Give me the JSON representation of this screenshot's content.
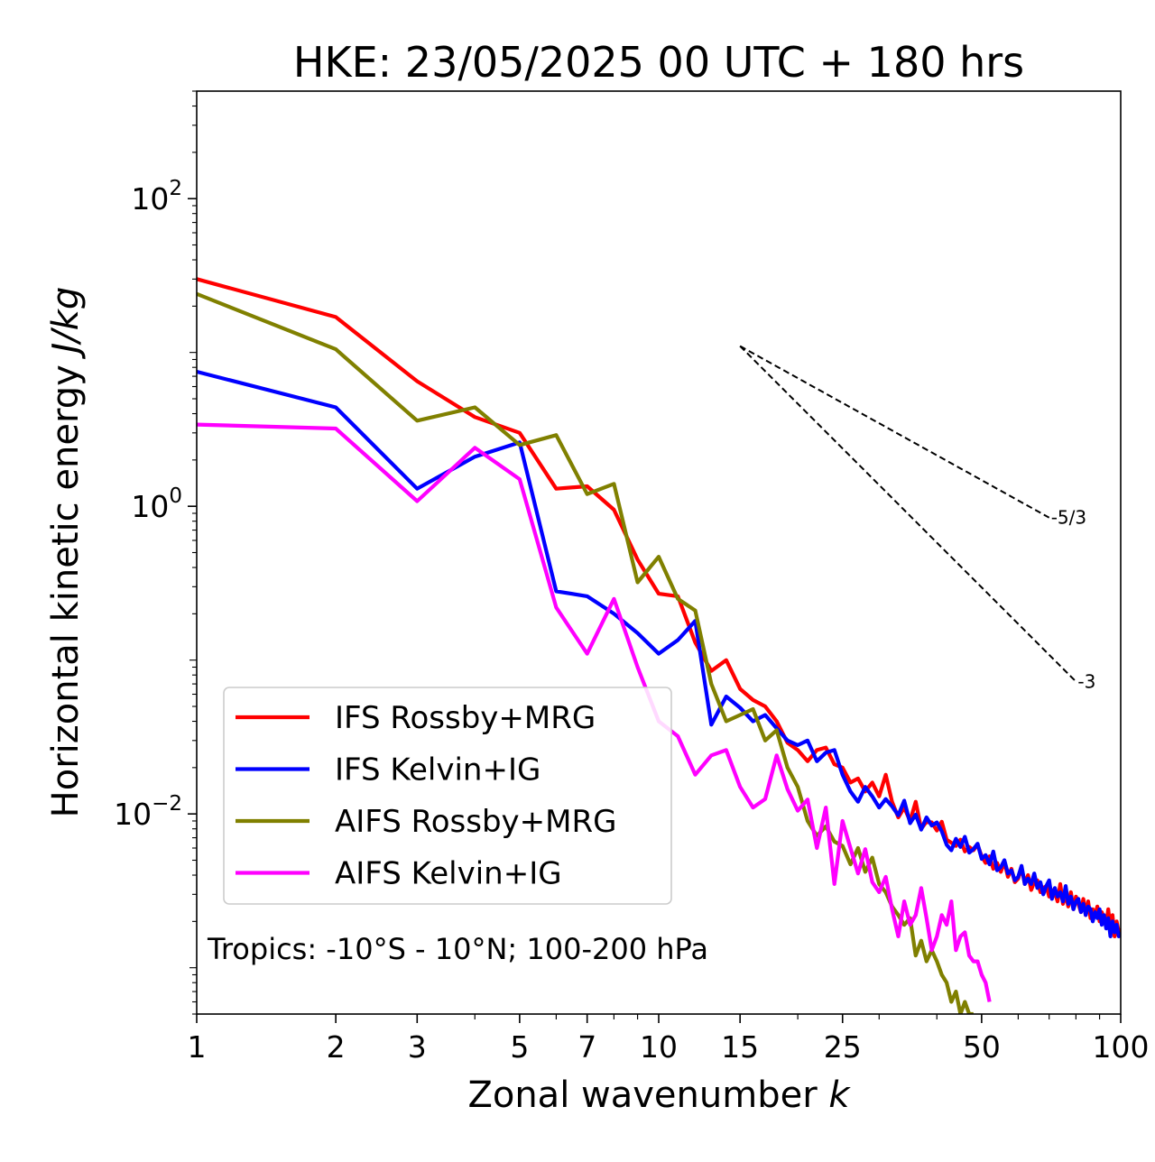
{
  "chart_data": {
    "type": "line",
    "title": "HKE: 23/05/2025 00 UTC + 180 hrs",
    "xlabel": "Zonal wavenumber ",
    "xlabel_italic": "k",
    "ylabel": "Horizontal kinetic energy ",
    "ylabel_italic": "J/kg",
    "xscale": "log",
    "yscale": "log",
    "xlim": [
      1,
      100
    ],
    "ylim": [
      0.0005,
      500
    ],
    "xticks": [
      1,
      2,
      3,
      5,
      7,
      10,
      15,
      25,
      50,
      100
    ],
    "xtick_labels": [
      "1",
      "2",
      "3",
      "5",
      "7",
      "10",
      "15",
      "25",
      "50",
      "100"
    ],
    "yticks": [
      0.01,
      1,
      100
    ],
    "ytick_labels": [
      {
        "base": "10",
        "exp": "−2"
      },
      {
        "base": "10",
        "exp": "0"
      },
      {
        "base": "10",
        "exp": "2"
      }
    ],
    "grid": false,
    "legend_position": "lower-left",
    "annotation": "Tropics: -10°S - 10°N; 100-200 hPa",
    "reference_slopes": [
      {
        "label": "-5/3",
        "slope": -1.6667,
        "x_start": 15,
        "x_end": 70,
        "y_start": 11
      },
      {
        "label": "-3",
        "slope": -3,
        "x_start": 15,
        "x_end": 80,
        "y_start": 11
      }
    ],
    "series": [
      {
        "name": "IFS Rossby+MRG",
        "color": "#ff0000",
        "x": [
          1,
          2,
          3,
          4,
          5,
          6,
          7,
          8,
          9,
          10,
          11,
          12,
          13,
          14,
          15,
          16,
          17,
          18,
          19,
          20,
          21,
          22,
          23,
          24,
          25,
          26,
          27,
          28,
          29,
          30,
          31,
          32,
          33,
          34,
          35,
          36,
          37,
          38,
          39,
          40,
          41,
          42,
          43,
          44,
          45,
          46,
          47,
          48,
          49,
          50,
          51,
          52,
          53,
          54,
          55,
          56,
          57,
          58,
          59,
          60,
          61,
          62,
          63,
          64,
          65,
          66,
          67,
          68,
          69,
          70,
          71,
          72,
          73,
          74,
          75,
          76,
          77,
          78,
          79,
          80,
          81,
          82,
          83,
          84,
          85,
          86,
          87,
          88,
          89,
          90,
          91,
          92,
          93,
          94,
          95,
          96,
          97,
          98,
          99,
          100
        ],
        "y": [
          30,
          17,
          6.5,
          3.8,
          3,
          1.3,
          1.35,
          0.95,
          0.45,
          0.27,
          0.26,
          0.13,
          0.085,
          0.1,
          0.065,
          0.055,
          0.05,
          0.04,
          0.029,
          0.026,
          0.022,
          0.026,
          0.027,
          0.021,
          0.02,
          0.016,
          0.017,
          0.014,
          0.016,
          0.013,
          0.018,
          0.012,
          0.0095,
          0.011,
          0.009,
          0.012,
          0.008,
          0.0089,
          0.0088,
          0.0078,
          0.0089,
          0.0068,
          0.0065,
          0.0062,
          0.0068,
          0.0057,
          0.0061,
          0.0058,
          0.0063,
          0.0053,
          0.0048,
          0.0053,
          0.0044,
          0.0048,
          0.0042,
          0.0049,
          0.0039,
          0.0044,
          0.0036,
          0.0038,
          0.0045,
          0.0035,
          0.004,
          0.0032,
          0.0036,
          0.0037,
          0.0031,
          0.0033,
          0.0034,
          0.0029,
          0.0032,
          0.0031,
          0.0027,
          0.0035,
          0.0026,
          0.003,
          0.0025,
          0.0031,
          0.0024,
          0.0029,
          0.0026,
          0.0023,
          0.0028,
          0.0022,
          0.0027,
          0.0021,
          0.0024,
          0.0022,
          0.0025,
          0.002,
          0.0023,
          0.0021,
          0.0019,
          0.0024,
          0.0018,
          0.0022,
          0.0016,
          0.002,
          0.0017,
          0.0018
        ]
      },
      {
        "name": "IFS Kelvin+IG",
        "color": "#0000ff",
        "x": [
          1,
          2,
          3,
          4,
          5,
          6,
          7,
          8,
          9,
          10,
          11,
          12,
          13,
          14,
          15,
          16,
          17,
          18,
          19,
          20,
          21,
          22,
          23,
          24,
          25,
          26,
          27,
          28,
          29,
          30,
          31,
          32,
          33,
          34,
          35,
          36,
          37,
          38,
          39,
          40,
          41,
          42,
          43,
          44,
          45,
          46,
          47,
          48,
          49,
          50,
          51,
          52,
          53,
          54,
          55,
          56,
          57,
          58,
          59,
          60,
          61,
          62,
          63,
          64,
          65,
          66,
          67,
          68,
          69,
          70,
          71,
          72,
          73,
          74,
          75,
          76,
          77,
          78,
          79,
          80,
          81,
          82,
          83,
          84,
          85,
          86,
          87,
          88,
          89,
          90,
          91,
          92,
          93,
          94,
          95,
          96,
          97,
          98,
          99,
          100
        ],
        "y": [
          7.5,
          4.4,
          1.3,
          2.1,
          2.6,
          0.28,
          0.26,
          0.2,
          0.15,
          0.11,
          0.135,
          0.18,
          0.038,
          0.058,
          0.049,
          0.04,
          0.044,
          0.036,
          0.03,
          0.028,
          0.03,
          0.022,
          0.025,
          0.026,
          0.018,
          0.014,
          0.012,
          0.015,
          0.013,
          0.011,
          0.0125,
          0.0112,
          0.0098,
          0.0122,
          0.0087,
          0.0099,
          0.0079,
          0.0095,
          0.0084,
          0.0088,
          0.0077,
          0.0063,
          0.0058,
          0.0069,
          0.0061,
          0.0071,
          0.0056,
          0.0059,
          0.0064,
          0.0051,
          0.0054,
          0.0047,
          0.0057,
          0.0043,
          0.0045,
          0.005,
          0.0041,
          0.0043,
          0.0037,
          0.0039,
          0.0046,
          0.0035,
          0.0038,
          0.0035,
          0.0041,
          0.0033,
          0.0036,
          0.003,
          0.0034,
          0.0037,
          0.0028,
          0.0033,
          0.0029,
          0.0031,
          0.0027,
          0.0034,
          0.0026,
          0.0029,
          0.0024,
          0.0027,
          0.0028,
          0.0023,
          0.0026,
          0.0022,
          0.0025,
          0.0024,
          0.002,
          0.0023,
          0.0021,
          0.0024,
          0.0019,
          0.0022,
          0.0018,
          0.0021,
          0.0016,
          0.002,
          0.0017,
          0.0019,
          0.0016,
          0.0017
        ]
      },
      {
        "name": "AIFS Rossby+MRG",
        "color": "#808000",
        "x": [
          1,
          2,
          3,
          4,
          5,
          6,
          7,
          8,
          9,
          10,
          11,
          12,
          13,
          14,
          15,
          16,
          17,
          18,
          19,
          20,
          21,
          22,
          23,
          24,
          25,
          26,
          27,
          28,
          29,
          30,
          31,
          32,
          33,
          34,
          35,
          36,
          37,
          38,
          39,
          40,
          41,
          42,
          43,
          44,
          45,
          46,
          47,
          48
        ],
        "y": [
          24,
          10.5,
          3.6,
          4.4,
          2.5,
          2.9,
          1.2,
          1.4,
          0.32,
          0.47,
          0.25,
          0.21,
          0.07,
          0.04,
          0.044,
          0.048,
          0.03,
          0.035,
          0.02,
          0.015,
          0.009,
          0.0072,
          0.0083,
          0.0066,
          0.0062,
          0.0047,
          0.006,
          0.0042,
          0.0052,
          0.0035,
          0.0031,
          0.0025,
          0.0022,
          0.0019,
          0.0021,
          0.0012,
          0.0015,
          0.0011,
          0.0013,
          0.0011,
          0.0009,
          0.0008,
          0.0006,
          0.0007,
          0.0005,
          0.0006,
          0.0005,
          0.0005
        ]
      },
      {
        "name": "AIFS Kelvin+IG",
        "color": "#ff00ff",
        "x": [
          1,
          2,
          3,
          4,
          5,
          6,
          7,
          8,
          9,
          10,
          11,
          12,
          13,
          14,
          15,
          16,
          17,
          18,
          19,
          20,
          21,
          22,
          23,
          24,
          25,
          26,
          27,
          28,
          29,
          30,
          31,
          32,
          33,
          34,
          35,
          36,
          37,
          38,
          39,
          40,
          41,
          42,
          43,
          44,
          45,
          46,
          47,
          48,
          49,
          50,
          51,
          52
        ],
        "y": [
          3.4,
          3.2,
          1.08,
          2.4,
          1.5,
          0.22,
          0.11,
          0.25,
          0.09,
          0.04,
          0.032,
          0.018,
          0.024,
          0.026,
          0.015,
          0.011,
          0.0125,
          0.024,
          0.0145,
          0.0105,
          0.0124,
          0.006,
          0.011,
          0.0035,
          0.009,
          0.006,
          0.0041,
          0.0059,
          0.0036,
          0.0031,
          0.0039,
          0.0024,
          0.0016,
          0.0027,
          0.0019,
          0.0022,
          0.0033,
          0.0021,
          0.0013,
          0.0016,
          0.0022,
          0.0019,
          0.0027,
          0.0013,
          0.0016,
          0.0017,
          0.0012,
          0.0011,
          0.0011,
          0.0009,
          0.0008,
          0.0006
        ]
      }
    ]
  }
}
